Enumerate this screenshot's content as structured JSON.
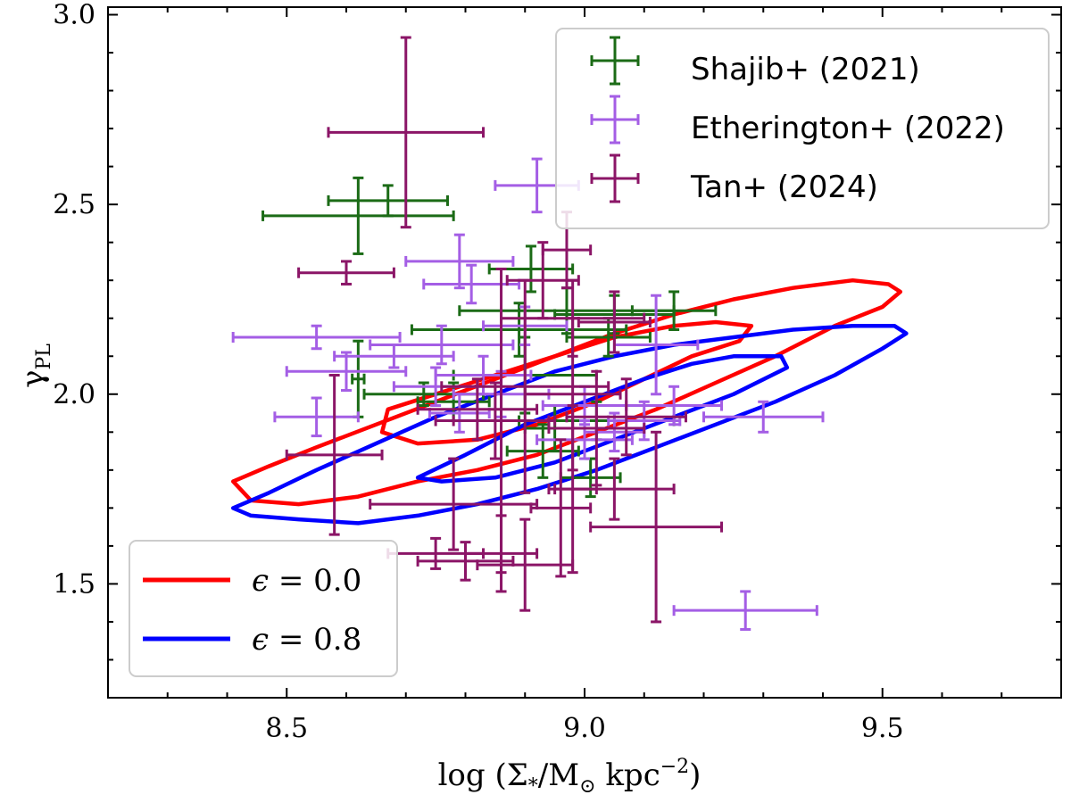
{
  "chart_data": {
    "type": "scatter",
    "xlabel": "log (Σ*/M☉ kpc⁻²)",
    "xlabel_parts": {
      "prefix": "log (Σ",
      "sub": "*",
      "mid": "/M",
      "sun": "⊙",
      "unit": " kpc",
      "sup": "−2",
      "suffix": ")"
    },
    "ylabel": "γPL",
    "ylabel_parts": {
      "symbol": "γ",
      "sub": "PL"
    },
    "xlim": [
      8.2,
      9.8
    ],
    "ylim": [
      1.2,
      3.02
    ],
    "xticks": [
      8.5,
      9.0,
      9.5
    ],
    "xtick_labels": [
      "8.5",
      "9.0",
      "9.5"
    ],
    "yticks": [
      1.5,
      2.0,
      2.5,
      3.0
    ],
    "ytick_labels": [
      "1.5",
      "2.0",
      "2.5",
      "3.0"
    ],
    "x_minor_step": 0.1,
    "y_minor_step": 0.1,
    "legend_errorbars": {
      "position": "top-right",
      "entries": [
        "Shajib+ (2021)",
        "Etherington+ (2022)",
        "Tan+ (2024)"
      ]
    },
    "legend_contours": {
      "position": "bottom-left",
      "entries": [
        {
          "symbol": "ϵ",
          "eq": " = ",
          "value": "0.0"
        },
        {
          "symbol": "ϵ",
          "eq": " = ",
          "value": "0.8"
        }
      ]
    },
    "series": [
      {
        "name": "Shajib+ (2021)",
        "color": "#1b6b16",
        "points": [
          {
            "x": 8.62,
            "y": 2.47,
            "xerr": 0.16,
            "yerr": 0.1
          },
          {
            "x": 8.67,
            "y": 2.51,
            "xerr": 0.1,
            "yerr": 0.04
          },
          {
            "x": 8.62,
            "y": 2.04,
            "xerr": 0.01,
            "yerr": 0.1
          },
          {
            "x": 8.73,
            "y": 2.0,
            "xerr": 0.1,
            "yerr": 0.03
          },
          {
            "x": 8.78,
            "y": 1.98,
            "xerr": 0.06,
            "yerr": 0.05
          },
          {
            "x": 8.91,
            "y": 2.33,
            "xerr": 0.07,
            "yerr": 0.06
          },
          {
            "x": 8.97,
            "y": 2.22,
            "xerr": 0.18,
            "yerr": 0.06
          },
          {
            "x": 8.89,
            "y": 2.17,
            "xerr": 0.18,
            "yerr": 0.07
          },
          {
            "x": 8.9,
            "y": 2.05,
            "xerr": 0.12,
            "yerr": 0.1
          },
          {
            "x": 9.05,
            "y": 2.21,
            "xerr": 0.1,
            "yerr": 0.05
          },
          {
            "x": 9.15,
            "y": 2.22,
            "xerr": 0.07,
            "yerr": 0.05
          },
          {
            "x": 9.04,
            "y": 2.15,
            "xerr": 0.07,
            "yerr": 0.05
          },
          {
            "x": 9.02,
            "y": 1.93,
            "xerr": 0.13,
            "yerr": 0.05
          },
          {
            "x": 8.95,
            "y": 1.91,
            "xerr": 0.05,
            "yerr": 0.06
          },
          {
            "x": 8.93,
            "y": 1.85,
            "xerr": 0.06,
            "yerr": 0.07
          },
          {
            "x": 9.01,
            "y": 1.78,
            "xerr": 0.05,
            "yerr": 0.05
          }
        ]
      },
      {
        "name": "Etherington+ (2022)",
        "color": "#a45ee5",
        "points": [
          {
            "x": 8.55,
            "y": 2.15,
            "xerr": 0.14,
            "yerr": 0.03
          },
          {
            "x": 8.6,
            "y": 2.06,
            "xerr": 0.1,
            "yerr": 0.05
          },
          {
            "x": 8.55,
            "y": 1.94,
            "xerr": 0.07,
            "yerr": 0.05
          },
          {
            "x": 8.68,
            "y": 2.1,
            "xerr": 0.1,
            "yerr": 0.03
          },
          {
            "x": 8.76,
            "y": 2.13,
            "xerr": 0.12,
            "yerr": 0.05
          },
          {
            "x": 8.79,
            "y": 2.35,
            "xerr": 0.09,
            "yerr": 0.07
          },
          {
            "x": 8.81,
            "y": 2.29,
            "xerr": 0.08,
            "yerr": 0.05
          },
          {
            "x": 8.92,
            "y": 2.55,
            "xerr": 0.07,
            "yerr": 0.07
          },
          {
            "x": 8.9,
            "y": 2.18,
            "xerr": 0.07,
            "yerr": 0.05
          },
          {
            "x": 8.75,
            "y": 2.02,
            "xerr": 0.07,
            "yerr": 0.05
          },
          {
            "x": 8.79,
            "y": 1.95,
            "xerr": 0.05,
            "yerr": 0.05
          },
          {
            "x": 8.83,
            "y": 2.05,
            "xerr": 0.08,
            "yerr": 0.05
          },
          {
            "x": 8.86,
            "y": 2.0,
            "xerr": 0.08,
            "yerr": 0.06
          },
          {
            "x": 9.0,
            "y": 1.97,
            "xerr": 0.07,
            "yerr": 0.05
          },
          {
            "x": 9.05,
            "y": 1.9,
            "xerr": 0.05,
            "yerr": 0.05
          },
          {
            "x": 9.12,
            "y": 2.13,
            "xerr": 0.07,
            "yerr": 0.13
          },
          {
            "x": 9.1,
            "y": 1.93,
            "xerr": 0.06,
            "yerr": 0.05
          },
          {
            "x": 9.0,
            "y": 1.88,
            "xerr": 0.08,
            "yerr": 0.05
          },
          {
            "x": 9.15,
            "y": 1.97,
            "xerr": 0.08,
            "yerr": 0.05
          },
          {
            "x": 9.3,
            "y": 1.94,
            "xerr": 0.1,
            "yerr": 0.04
          },
          {
            "x": 9.27,
            "y": 1.43,
            "xerr": 0.12,
            "yerr": 0.05
          }
        ]
      },
      {
        "name": "Tan+ (2024)",
        "color": "#8b1567",
        "points": [
          {
            "x": 8.7,
            "y": 2.69,
            "xerr": 0.13,
            "yerr": 0.25
          },
          {
            "x": 8.6,
            "y": 2.32,
            "xerr": 0.08,
            "yerr": 0.03
          },
          {
            "x": 8.58,
            "y": 1.84,
            "xerr": 0.08,
            "yerr": 0.21
          },
          {
            "x": 8.82,
            "y": 1.96,
            "xerr": 0.1,
            "yerr": 0.08
          },
          {
            "x": 8.85,
            "y": 1.93,
            "xerr": 0.1,
            "yerr": 0.1
          },
          {
            "x": 8.9,
            "y": 2.02,
            "xerr": 0.14,
            "yerr": 0.28
          },
          {
            "x": 8.93,
            "y": 2.3,
            "xerr": 0.06,
            "yerr": 0.1
          },
          {
            "x": 8.97,
            "y": 2.38,
            "xerr": 0.04,
            "yerr": 0.1
          },
          {
            "x": 8.98,
            "y": 2.2,
            "xerr": 0.12,
            "yerr": 0.1
          },
          {
            "x": 9.05,
            "y": 2.19,
            "xerr": 0.06,
            "yerr": 0.08
          },
          {
            "x": 9.02,
            "y": 1.91,
            "xerr": 0.08,
            "yerr": 0.15
          },
          {
            "x": 8.86,
            "y": 1.93,
            "xerr": 0.08,
            "yerr": 0.4
          },
          {
            "x": 8.78,
            "y": 1.71,
            "xerr": 0.14,
            "yerr": 0.12
          },
          {
            "x": 8.9,
            "y": 1.55,
            "xerr": 0.08,
            "yerr": 0.12
          },
          {
            "x": 8.86,
            "y": 1.58,
            "xerr": 0.06,
            "yerr": 0.1
          },
          {
            "x": 8.8,
            "y": 1.56,
            "xerr": 0.08,
            "yerr": 0.05
          },
          {
            "x": 8.75,
            "y": 1.58,
            "xerr": 0.08,
            "yerr": 0.04
          },
          {
            "x": 9.12,
            "y": 1.65,
            "xerr": 0.11,
            "yerr": 0.25
          },
          {
            "x": 9.07,
            "y": 1.94,
            "xerr": 0.1,
            "yerr": 0.1
          },
          {
            "x": 9.05,
            "y": 1.75,
            "xerr": 0.1,
            "yerr": 0.08
          },
          {
            "x": 8.96,
            "y": 1.7,
            "xerr": 0.05,
            "yerr": 0.18
          },
          {
            "x": 8.98,
            "y": 1.75,
            "xerr": 0.04,
            "yerr": 0.22
          },
          {
            "x": 8.98,
            "y": 2.0,
            "xerr": 0.08,
            "yerr": 0.2
          }
        ]
      }
    ],
    "contours": [
      {
        "name": "ϵ = 0.0",
        "color": "#ff0000",
        "levels": [
          [
            [
              8.41,
              1.77
            ],
            [
              8.47,
              1.81
            ],
            [
              8.55,
              1.86
            ],
            [
              8.65,
              1.92
            ],
            [
              8.75,
              1.98
            ],
            [
              8.85,
              2.04
            ],
            [
              8.95,
              2.1
            ],
            [
              9.05,
              2.16
            ],
            [
              9.15,
              2.21
            ],
            [
              9.25,
              2.25
            ],
            [
              9.35,
              2.28
            ],
            [
              9.45,
              2.3
            ],
            [
              9.51,
              2.29
            ],
            [
              9.53,
              2.27
            ],
            [
              9.5,
              2.23
            ],
            [
              9.42,
              2.18
            ],
            [
              9.32,
              2.1
            ],
            [
              9.22,
              2.03
            ],
            [
              9.12,
              1.96
            ],
            [
              9.02,
              1.9
            ],
            [
              8.92,
              1.84
            ],
            [
              8.82,
              1.8
            ],
            [
              8.72,
              1.77
            ],
            [
              8.62,
              1.73
            ],
            [
              8.52,
              1.71
            ],
            [
              8.44,
              1.72
            ],
            [
              8.41,
              1.77
            ]
          ],
          [
            [
              8.67,
              1.96
            ],
            [
              8.75,
              2.0
            ],
            [
              8.85,
              2.05
            ],
            [
              8.95,
              2.1
            ],
            [
              9.05,
              2.15
            ],
            [
              9.15,
              2.18
            ],
            [
              9.22,
              2.19
            ],
            [
              9.28,
              2.18
            ],
            [
              9.26,
              2.14
            ],
            [
              9.18,
              2.1
            ],
            [
              9.1,
              2.04
            ],
            [
              9.02,
              1.98
            ],
            [
              8.92,
              1.92
            ],
            [
              8.82,
              1.88
            ],
            [
              8.72,
              1.87
            ],
            [
              8.66,
              1.9
            ],
            [
              8.67,
              1.96
            ]
          ]
        ]
      },
      {
        "name": "ϵ = 0.8",
        "color": "#0000ff",
        "levels": [
          [
            [
              8.41,
              1.7
            ],
            [
              8.47,
              1.74
            ],
            [
              8.55,
              1.8
            ],
            [
              8.65,
              1.87
            ],
            [
              8.75,
              1.94
            ],
            [
              8.85,
              2.0
            ],
            [
              8.95,
              2.06
            ],
            [
              9.05,
              2.1
            ],
            [
              9.15,
              2.13
            ],
            [
              9.25,
              2.15
            ],
            [
              9.35,
              2.17
            ],
            [
              9.45,
              2.18
            ],
            [
              9.52,
              2.18
            ],
            [
              9.54,
              2.16
            ],
            [
              9.5,
              2.12
            ],
            [
              9.42,
              2.05
            ],
            [
              9.32,
              1.98
            ],
            [
              9.22,
              1.92
            ],
            [
              9.12,
              1.86
            ],
            [
              9.02,
              1.8
            ],
            [
              8.92,
              1.75
            ],
            [
              8.82,
              1.71
            ],
            [
              8.72,
              1.68
            ],
            [
              8.62,
              1.66
            ],
            [
              8.52,
              1.67
            ],
            [
              8.44,
              1.68
            ],
            [
              8.41,
              1.7
            ]
          ],
          [
            [
              8.72,
              1.78
            ],
            [
              8.8,
              1.84
            ],
            [
              8.9,
              1.92
            ],
            [
              9.0,
              1.98
            ],
            [
              9.1,
              2.04
            ],
            [
              9.18,
              2.08
            ],
            [
              9.25,
              2.1
            ],
            [
              9.33,
              2.1
            ],
            [
              9.34,
              2.07
            ],
            [
              9.25,
              2.0
            ],
            [
              9.15,
              1.94
            ],
            [
              9.05,
              1.88
            ],
            [
              8.95,
              1.82
            ],
            [
              8.85,
              1.78
            ],
            [
              8.76,
              1.77
            ],
            [
              8.72,
              1.78
            ]
          ]
        ]
      }
    ]
  }
}
